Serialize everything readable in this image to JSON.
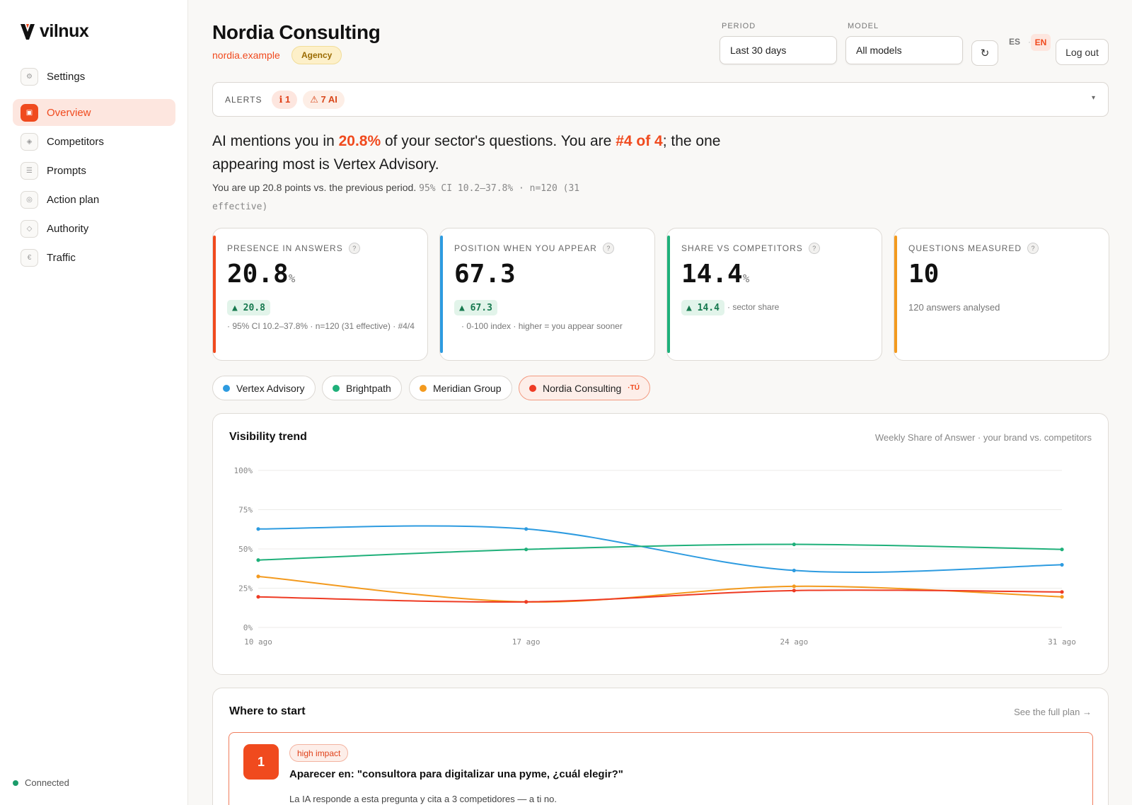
{
  "app": {
    "logo_text": "vilnux"
  },
  "sidebar": {
    "items": [
      {
        "label": "Settings",
        "icon": "gear-icon"
      },
      {
        "label": "Overview",
        "icon": "dashboard-icon",
        "active": true
      },
      {
        "label": "Competitors",
        "icon": "diamond-icon"
      },
      {
        "label": "Prompts",
        "icon": "list-icon"
      },
      {
        "label": "Action plan",
        "icon": "target-icon"
      },
      {
        "label": "Authority",
        "icon": "diamond-outline-icon"
      },
      {
        "label": "Traffic",
        "icon": "euro-icon"
      }
    ],
    "status": "Connected"
  },
  "header": {
    "title": "Nordia Consulting",
    "url": "nordia.example",
    "badge": "Agency",
    "period_label": "PERIOD",
    "period_value": "Last 30 days",
    "model_label": "MODEL",
    "model_value": "All models",
    "refresh_icon": "↻",
    "lang_es": "ES",
    "lang_sep": "·",
    "lang_en": "EN",
    "logout": "Log out"
  },
  "alerts": {
    "label": "ALERTS",
    "info_chip": "ℹ 1",
    "warn_chip": "⚠ 7 AI",
    "caret": "▾"
  },
  "headline": {
    "p1": "AI mentions you in ",
    "pct": "20.8%",
    "p2": " of your sector's questions. You are ",
    "rank": "#4 of 4",
    "p3": "; the one appearing most is Vertex Advisory.",
    "sub_text": "You are up 20.8 points vs. the previous period. ",
    "sub_mono": "95% CI 10.2–37.8% · n=120 (31 effective)"
  },
  "kpis": [
    {
      "label": "PRESENCE IN ANSWERS",
      "value": "20.8",
      "unit": "%",
      "delta": "▲ 20.8",
      "note": "· 95% CI 10.2–37.8% · n=120 (31 effective) · #4/4",
      "color": "#f04a1e"
    },
    {
      "label": "POSITION WHEN YOU APPEAR",
      "value": "67.3",
      "unit": "",
      "delta": "▲ 67.3",
      "note": "· 0-100 index · higher = you appear sooner",
      "color": "#2d9be0"
    },
    {
      "label": "SHARE VS COMPETITORS",
      "value": "14.4",
      "unit": "%",
      "delta": "▲ 14.4",
      "note": "· sector share",
      "color": "#1fb07a"
    },
    {
      "label": "QUESTIONS MEASURED",
      "value": "10",
      "unit": "",
      "note": "120 answers analysed",
      "color": "#f39a1e"
    }
  ],
  "competitors": [
    {
      "name": "Vertex Advisory",
      "color": "#2d9be0"
    },
    {
      "name": "Brightpath",
      "color": "#1fb07a"
    },
    {
      "name": "Meridian Group",
      "color": "#f39a1e"
    },
    {
      "name": "Nordia Consulting",
      "color": "#ee3b24",
      "you": "·TÚ"
    }
  ],
  "trend": {
    "title": "Visibility trend",
    "subtitle": "Weekly Share of Answer · your brand vs. competitors"
  },
  "chart_data": {
    "type": "line",
    "x": [
      "10 ago",
      "17 ago",
      "24 ago",
      "31 ago"
    ],
    "y_ticks": [
      "100%",
      "75%",
      "50%",
      "25%",
      "0%"
    ],
    "ylim": [
      0,
      100
    ],
    "series": [
      {
        "name": "Vertex Advisory",
        "color": "#2d9be0",
        "values": [
          62.7,
          62.7,
          36.3,
          39.9
        ]
      },
      {
        "name": "Brightpath",
        "color": "#1fb07a",
        "values": [
          42.9,
          49.7,
          52.9,
          49.7
        ]
      },
      {
        "name": "Meridian Group",
        "color": "#f39a1e",
        "values": [
          32.5,
          16.3,
          26.2,
          19.5
        ]
      },
      {
        "name": "Nordia Consulting",
        "color": "#ee3b24",
        "values": [
          19.5,
          16.3,
          23.5,
          22.6
        ]
      }
    ],
    "grid": true
  },
  "start": {
    "title": "Where to start",
    "link": "See the full plan →",
    "task_number": "1",
    "task_tag": "high impact",
    "task_title": "Aparecer en: \"consultora para digitalizar una pyme, ¿cuál elegir?\"",
    "task_desc": "La IA responde a esta pregunta y cita a 3 competidores — a ti no."
  }
}
